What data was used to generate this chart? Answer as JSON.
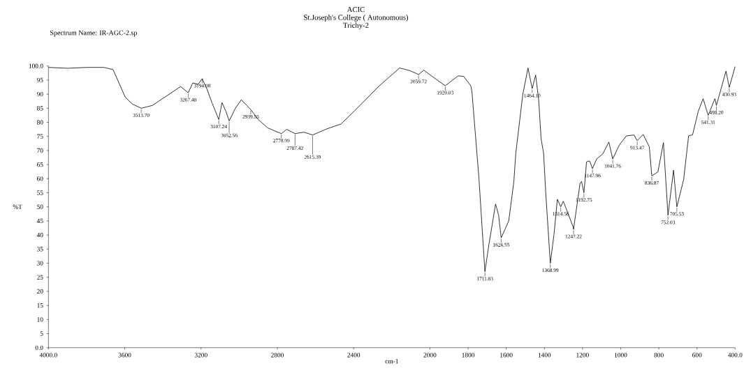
{
  "chart_data": {
    "type": "line",
    "title": "ACIC",
    "subtitle": "St.Joseph's College ( Autonomous)",
    "xlabel": "cm-1",
    "ylabel": "%T",
    "x": [
      4000,
      3900,
      3800,
      3709,
      3661,
      3598,
      3560,
      3513.7,
      3455,
      3400,
      3307,
      3267.4,
      3243,
      3215,
      3194.08,
      3170,
      3143,
      3116,
      3107.24,
      3090,
      3070,
      3052.56,
      3020,
      2989,
      2960,
      2939.55,
      2900,
      2850,
      2815,
      2778.99,
      2751,
      2707.42,
      2660,
      2615.39,
      2540,
      2466,
      2376,
      2265,
      2159,
      2107,
      2059.72,
      2032,
      1968,
      1920.03,
      1852,
      1823,
      1786,
      1780,
      1743,
      1711.83,
      1690,
      1656,
      1640,
      1626.55,
      1587,
      1560,
      1550,
      1513,
      1486,
      1464.1,
      1446,
      1430,
      1417,
      1404,
      1393,
      1368.99,
      1350,
      1332,
      1314.56,
      1301,
      1250,
      1247.22,
      1213,
      1205,
      1192.75,
      1179,
      1163,
      1147.96,
      1126,
      1094,
      1062,
      1041.76,
      1007,
      970,
      930,
      913.47,
      882,
      850,
      836.87,
      805,
      776,
      752.03,
      723,
      705.53,
      670,
      644,
      623,
      593,
      568,
      541.31,
      506,
      498.2,
      448,
      430.93,
      400
    ],
    "series": [
      {
        "color": "#000000",
        "values": [
          99.5,
          99.2,
          99.5,
          99.5,
          98.7,
          89,
          86.5,
          85,
          86,
          88.5,
          92.7,
          90.5,
          94,
          93.5,
          95.5,
          92,
          87,
          82.5,
          81,
          87,
          84,
          80.5,
          85,
          88,
          86,
          84.5,
          81,
          78,
          77,
          76,
          77.5,
          76,
          76.5,
          75.5,
          77.7,
          79.4,
          85.4,
          93,
          99.3,
          98.4,
          97,
          98.5,
          95.3,
          93,
          96.5,
          96.3,
          93,
          91,
          60,
          27,
          37,
          51,
          47,
          39,
          45,
          59,
          69,
          90,
          99.3,
          92,
          96.8,
          88,
          74,
          69,
          55,
          30,
          40,
          52.7,
          50,
          52,
          43,
          42,
          58.4,
          59,
          55,
          66,
          66.3,
          63.6,
          67,
          68.8,
          73,
          67,
          72,
          75.2,
          75.5,
          73.5,
          75.7,
          71.3,
          61,
          62.4,
          72.8,
          47,
          63,
          50,
          59.7,
          75.2,
          75.6,
          84,
          88.4,
          82.5,
          88.4,
          86,
          98.2,
          92.4,
          99.8
        ]
      }
    ],
    "xlim": [
      4000,
      400
    ],
    "ylim": [
      0,
      100
    ],
    "xticks": [
      {
        "value": 4000,
        "label": "4000.0"
      },
      3600,
      3200,
      2800,
      2400,
      2000,
      1800,
      1600,
      1400,
      1200,
      1000,
      800,
      600,
      {
        "value": 400,
        "label": "400.0"
      }
    ],
    "yticks": [
      {
        "value": 0,
        "label": "0.0"
      },
      5,
      10,
      15,
      20,
      25,
      30,
      35,
      40,
      45,
      50,
      55,
      60,
      65,
      70,
      75,
      80,
      85,
      90,
      95,
      {
        "value": 100,
        "label": "100.0"
      }
    ],
    "annotations": [
      "Trichy-2",
      "Spectrum Name: IR-AGC-2.sp",
      {
        "text": "3513.70",
        "x": 3513.7,
        "y": 85
      },
      {
        "text": "3267.40",
        "x": 3267.4,
        "y": 90.5
      },
      {
        "text": "3194.08",
        "x": 3194.08,
        "y": 95.5
      },
      {
        "text": "3107.24",
        "x": 3107.24,
        "y": 81
      },
      {
        "text": "3052.56",
        "x": 3052.56,
        "y": 80.5
      },
      {
        "text": "2939.55",
        "x": 2939.55,
        "y": 84.5
      },
      {
        "text": "2778.99",
        "x": 2778.99,
        "y": 76
      },
      {
        "text": "2707.42",
        "x": 2707.42,
        "y": 76
      },
      {
        "text": "2615.39",
        "x": 2615.39,
        "y": 75.5
      },
      {
        "text": "2059.72",
        "x": 2059.72,
        "y": 97
      },
      {
        "text": "1920.03",
        "x": 1920.03,
        "y": 93
      },
      {
        "text": "1711.83",
        "x": 1711.83,
        "y": 27
      },
      {
        "text": "1626.55",
        "x": 1626.55,
        "y": 39
      },
      {
        "text": "1464.10",
        "x": 1464.1,
        "y": 92
      },
      {
        "text": "1368.99",
        "x": 1368.99,
        "y": 30
      },
      {
        "text": "1314.56",
        "x": 1314.56,
        "y": 50
      },
      {
        "text": "1247.22",
        "x": 1247.22,
        "y": 42
      },
      {
        "text": "1192.75",
        "x": 1192.75,
        "y": 55
      },
      {
        "text": "1147.96",
        "x": 1147.96,
        "y": 63.6
      },
      {
        "text": "1041.76",
        "x": 1041.76,
        "y": 67
      },
      {
        "text": "913.47",
        "x": 913.47,
        "y": 73.5
      },
      {
        "text": "836.87",
        "x": 836.87,
        "y": 61
      },
      {
        "text": "752.03",
        "x": 752.03,
        "y": 47
      },
      {
        "text": "705.53",
        "x": 705.53,
        "y": 50
      },
      {
        "text": "541.31",
        "x": 541.31,
        "y": 82.5
      },
      {
        "text": "498.20",
        "x": 498.2,
        "y": 86
      },
      {
        "text": "430.93",
        "x": 430.93,
        "y": 92.4
      }
    ]
  }
}
